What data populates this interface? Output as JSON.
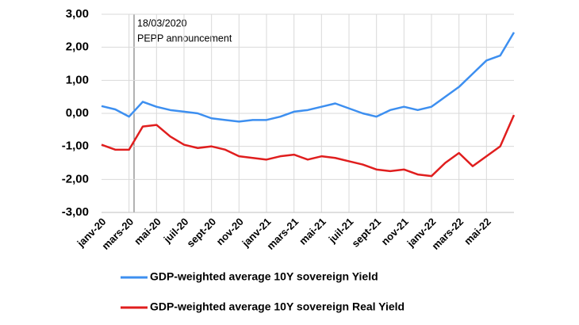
{
  "chart_data": {
    "type": "line",
    "annotations": [
      "18/03/2020",
      "PEPP announcement"
    ],
    "categories": [
      "janv-20",
      null,
      "mars-20",
      null,
      "mai-20",
      null,
      "juil-20",
      null,
      "sept-20",
      null,
      "nov-20",
      null,
      "janv-21",
      null,
      "mars-21",
      null,
      "mai-21",
      null,
      "juil-21",
      null,
      "sept-21",
      null,
      "nov-21",
      null,
      "janv-22",
      null,
      "mars-22",
      null,
      "mai-22",
      null,
      null
    ],
    "series": [
      {
        "name": "GDP-weighted average 10Y sovereign Yield",
        "color": "#3d8ff0",
        "values": [
          0.22,
          0.12,
          -0.1,
          0.35,
          0.2,
          0.1,
          0.05,
          0.0,
          -0.15,
          -0.2,
          -0.25,
          -0.2,
          -0.2,
          -0.1,
          0.05,
          0.1,
          0.2,
          0.3,
          0.15,
          0.0,
          -0.1,
          0.1,
          0.2,
          0.1,
          0.2,
          0.5,
          0.8,
          1.2,
          1.6,
          1.75,
          2.45
        ]
      },
      {
        "name": "GDP-weighted average 10Y sovereign Real Yield",
        "color": "#e01e1e",
        "values": [
          -0.95,
          -1.1,
          -1.1,
          -0.4,
          -0.35,
          -0.7,
          -0.95,
          -1.05,
          -1.0,
          -1.1,
          -1.3,
          -1.35,
          -1.4,
          -1.3,
          -1.25,
          -1.4,
          -1.3,
          -1.35,
          -1.45,
          -1.55,
          -1.7,
          -1.75,
          -1.7,
          -1.85,
          -1.9,
          -1.5,
          -1.2,
          -1.6,
          -1.3,
          -1.0,
          -0.05
        ]
      }
    ],
    "ylim": [
      -3,
      3
    ],
    "yticks": [
      {
        "value": -3,
        "label": "-3,00"
      },
      {
        "value": -2,
        "label": "-2,00"
      },
      {
        "value": -1,
        "label": "-1,00"
      },
      {
        "value": 0,
        "label": "0,00"
      },
      {
        "value": 1,
        "label": "1,00"
      },
      {
        "value": 2,
        "label": "2,00"
      },
      {
        "value": 3,
        "label": "3,00"
      }
    ],
    "grid": true,
    "legend": "bottom"
  }
}
